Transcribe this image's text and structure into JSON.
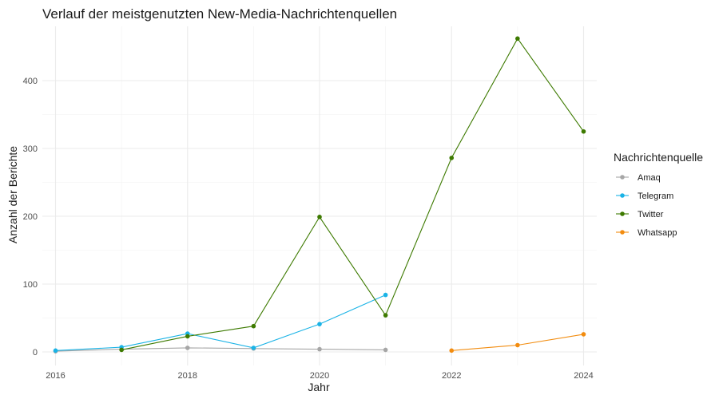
{
  "chart_data": {
    "type": "line",
    "title": "Verlauf der meistgenutzten New-Media-Nachrichtenquellen",
    "xlabel": "Jahr",
    "ylabel": "Anzahl der Berichte",
    "xlim": [
      2015.8,
      2024.2
    ],
    "ylim": [
      -20,
      480
    ],
    "x_ticks": [
      2016,
      2018,
      2020,
      2022,
      2024
    ],
    "y_ticks": [
      0,
      100,
      200,
      300,
      400
    ],
    "grid": true,
    "legend": {
      "title": "Nachrichtenquelle",
      "position": "right"
    },
    "series": [
      {
        "name": "Amaq",
        "color": "#a6a6a6",
        "points": [
          [
            2016,
            1
          ],
          [
            2017,
            4
          ],
          [
            2018,
            6
          ],
          [
            2019,
            5
          ],
          [
            2020,
            4
          ],
          [
            2021,
            3
          ]
        ]
      },
      {
        "name": "Telegram",
        "color": "#1ab3e6",
        "points": [
          [
            2016,
            2
          ],
          [
            2017,
            7
          ],
          [
            2018,
            27
          ],
          [
            2019,
            6
          ],
          [
            2020,
            41
          ],
          [
            2021,
            84
          ]
        ]
      },
      {
        "name": "Twitter",
        "color": "#3d7a00",
        "points": [
          [
            2017,
            3
          ],
          [
            2018,
            23
          ],
          [
            2019,
            38
          ],
          [
            2020,
            199
          ],
          [
            2021,
            54
          ],
          [
            2022,
            286
          ],
          [
            2023,
            462
          ],
          [
            2024,
            325
          ]
        ]
      },
      {
        "name": "Whatsapp",
        "color": "#f28c0f",
        "points": [
          [
            2022,
            2
          ],
          [
            2023,
            10
          ],
          [
            2024,
            26
          ]
        ]
      }
    ]
  }
}
